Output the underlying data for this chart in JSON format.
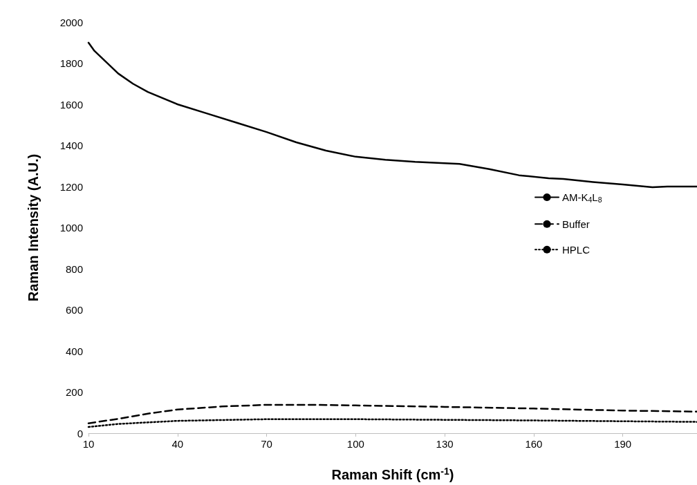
{
  "chart_data": {
    "type": "line",
    "xlabel": "Raman Shift (cm$^{-1}$)",
    "ylabel": "Raman Intensity (A.U.)",
    "xlim": [
      10,
      215
    ],
    "xticks": [
      10,
      40,
      70,
      100,
      130,
      160,
      190
    ],
    "ylim": [
      0,
      2000
    ],
    "yticks": [
      0,
      200,
      400,
      600,
      800,
      1000,
      1200,
      1400,
      1600,
      1800,
      2000
    ],
    "grid": false,
    "legend": "right",
    "marker": "none",
    "series": [
      {
        "name": "AM-K$_{4}$L$_{8}$",
        "color": "#000000",
        "line_style": "solid",
        "x": [
          10,
          12,
          20,
          25,
          30,
          40,
          50,
          60,
          70,
          80,
          90,
          100,
          110,
          120,
          135,
          145,
          155,
          165,
          170,
          180,
          190,
          200,
          205,
          215
        ],
        "values": [
          1900,
          1860,
          1750,
          1700,
          1660,
          1600,
          1555,
          1510,
          1465,
          1415,
          1375,
          1345,
          1330,
          1320,
          1310,
          1285,
          1255,
          1240,
          1237,
          1222,
          1210,
          1197,
          1200,
          1200
        ]
      },
      {
        "name": "Buffer",
        "color": "#000000",
        "line_style": "dashed",
        "x": [
          10,
          20,
          30,
          40,
          55,
          70,
          85,
          100,
          130,
          160,
          190,
          215
        ],
        "values": [
          48,
          70,
          95,
          115,
          130,
          138,
          138,
          135,
          128,
          120,
          110,
          105
        ]
      },
      {
        "name": "HPLC",
        "color": "#000000",
        "line_style": "dotted",
        "x": [
          10,
          20,
          40,
          70,
          100,
          130,
          160,
          190,
          215
        ],
        "values": [
          30,
          45,
          60,
          68,
          68,
          65,
          62,
          58,
          55
        ]
      }
    ]
  }
}
